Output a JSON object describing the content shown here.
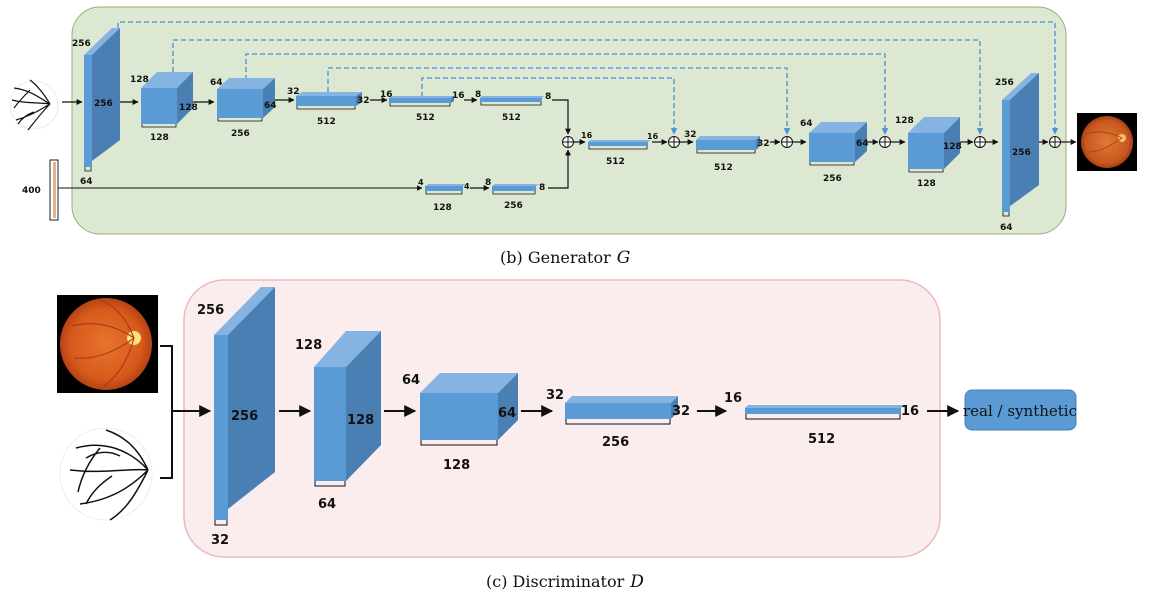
{
  "generator": {
    "caption_prefix": "(b) Generator",
    "caption_symbol": "G",
    "noise_label": "400",
    "encoder": [
      {
        "h": "256",
        "w": "256",
        "d": "64"
      },
      {
        "h": "128",
        "w": "128",
        "d": "128"
      },
      {
        "h": "64",
        "w": "64",
        "d": "256"
      },
      {
        "h": "32",
        "w": "32",
        "d": "512"
      },
      {
        "h": "16",
        "w": "16",
        "d": "512"
      },
      {
        "h": "8",
        "w": "8",
        "d": "512"
      }
    ],
    "noise_path": [
      {
        "h": "4",
        "w": "4",
        "d": "128"
      },
      {
        "h": "8",
        "w": "8",
        "d": "256"
      }
    ],
    "decoder": [
      {
        "h": "16",
        "w": "16",
        "d": "512"
      },
      {
        "h": "32",
        "w": "32",
        "d": "512"
      },
      {
        "h": "64",
        "w": "64",
        "d": "256"
      },
      {
        "h": "128",
        "w": "128",
        "d": "128"
      },
      {
        "h": "256",
        "w": "256",
        "d": "64"
      }
    ]
  },
  "discriminator": {
    "caption_prefix": "(c) Discriminator",
    "caption_symbol": "D",
    "output_label": "real / synthetic",
    "layers": [
      {
        "h": "256",
        "w": "256",
        "d": "32"
      },
      {
        "h": "128",
        "w": "128",
        "d": "64"
      },
      {
        "h": "64",
        "w": "64",
        "d": "128"
      },
      {
        "h": "32",
        "w": "32",
        "d": "256"
      },
      {
        "h": "16",
        "w": "16",
        "d": "512"
      }
    ]
  },
  "colors": {
    "generator_bg": "#dce8d2",
    "discriminator_bg": "#fbecee",
    "block_front": "#5b9bd5",
    "block_top": "#85b4e3",
    "block_side": "#4a7fb3",
    "skip_line": "#4a90d9",
    "output_box": "#5b9bd5"
  }
}
